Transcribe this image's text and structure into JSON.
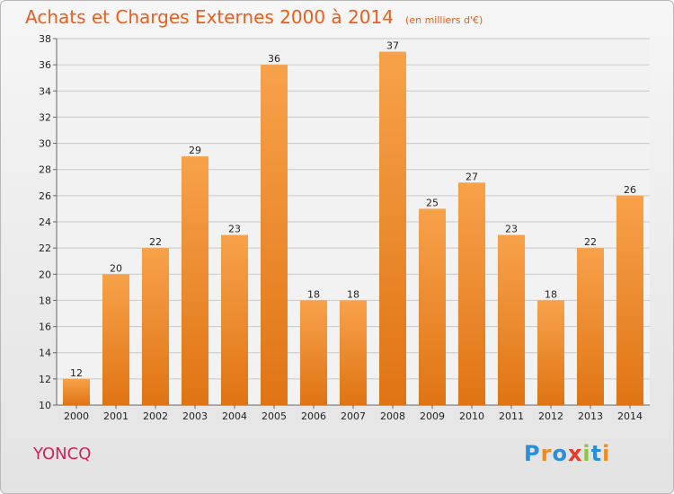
{
  "title": "Achats et Charges Externes 2000 à 2014",
  "subtitle": "(en milliers d'€)",
  "commune": "YONCQ",
  "logo": {
    "letters": [
      "P",
      "r",
      "o",
      "x",
      "i",
      "t",
      "i"
    ],
    "colors": [
      "#2a8fd8",
      "#f08a1c",
      "#2a8fd8",
      "#e53a2c",
      "#8cc63f",
      "#2a8fd8",
      "#f08a1c"
    ]
  },
  "colors": {
    "bar_light": "#f7a24a",
    "bar_dark": "#e07414",
    "title": "#ee5d1a",
    "commune": "#d2215a"
  },
  "chart_data": {
    "type": "bar",
    "categories": [
      "2000",
      "2001",
      "2002",
      "2003",
      "2004",
      "2005",
      "2006",
      "2007",
      "2008",
      "2009",
      "2010",
      "2011",
      "2012",
      "2013",
      "2014"
    ],
    "values": [
      12,
      20,
      22,
      29,
      23,
      36,
      18,
      18,
      37,
      25,
      27,
      23,
      18,
      22,
      26
    ],
    "ylim": [
      10,
      38
    ],
    "yticks": [
      10,
      12,
      14,
      16,
      18,
      20,
      22,
      24,
      26,
      28,
      30,
      32,
      34,
      36,
      38
    ],
    "grid": true
  }
}
